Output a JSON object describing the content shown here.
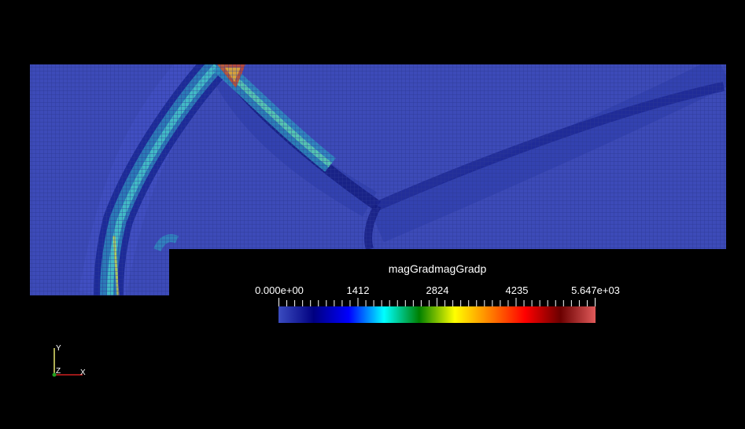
{
  "scalar_bar": {
    "title": "magGradmagGradp",
    "labels": [
      "0.000e+00",
      "1412",
      "2824",
      "4235",
      "5.647e+03"
    ],
    "range": [
      0,
      5647
    ],
    "colors": [
      "#3b4cc0",
      "#000080",
      "#0000ff",
      "#00ffff",
      "#008000",
      "#ffff00",
      "#ff8000",
      "#ff0000",
      "#6b0000",
      "#e05a5a"
    ]
  },
  "axes": {
    "y_label": "Y",
    "z_label": "Z",
    "x_label": "X"
  },
  "colors": {
    "background": "#000000",
    "field_base": "#3d4bb8",
    "mesh_line": "#2c3893"
  }
}
